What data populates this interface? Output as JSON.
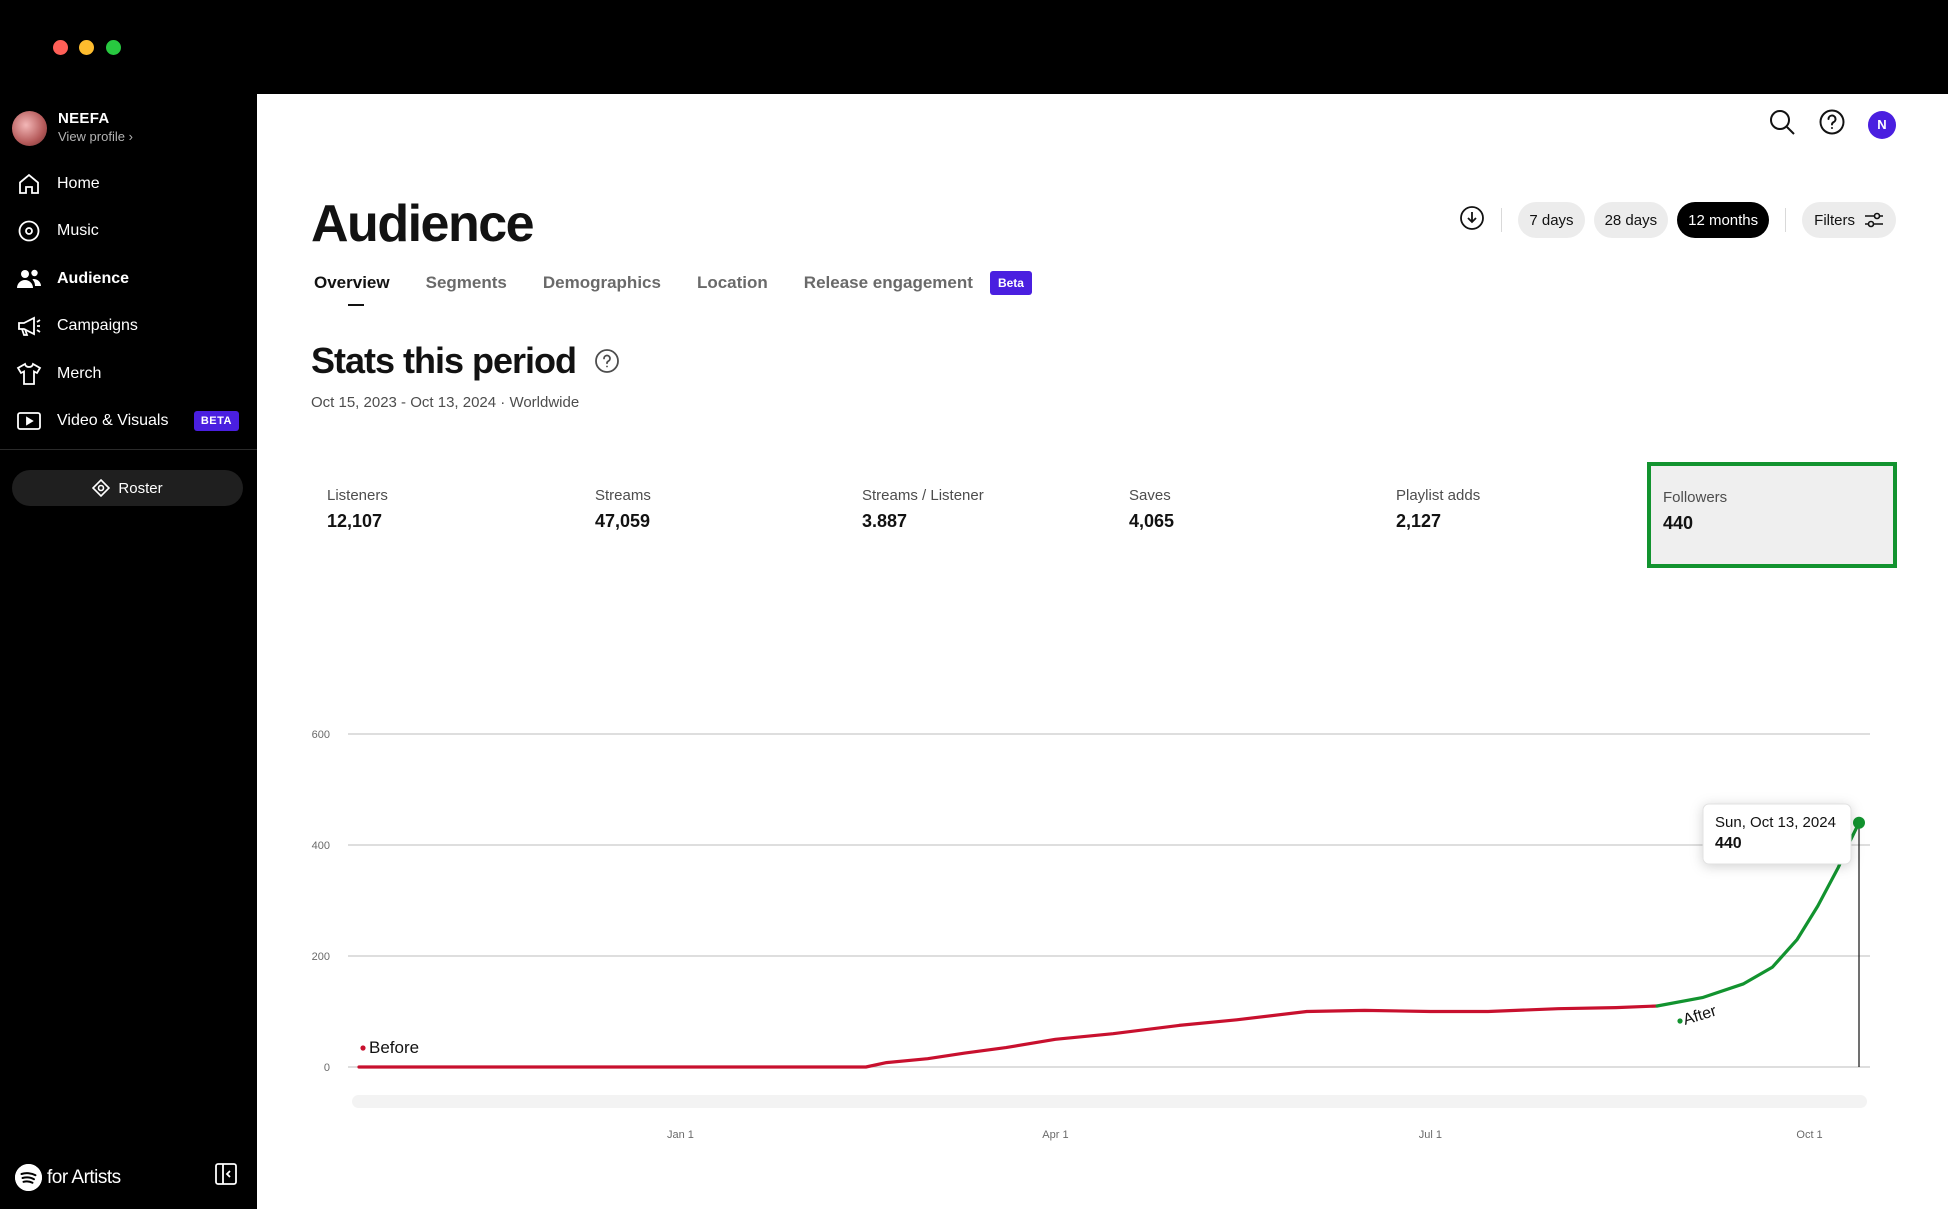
{
  "sidebar": {
    "profile": {
      "name": "NEEFA",
      "link": "View profile ›"
    },
    "items": [
      {
        "label": "Home",
        "icon": "home-icon"
      },
      {
        "label": "Music",
        "icon": "disc-icon"
      },
      {
        "label": "Audience",
        "icon": "people-icon",
        "active": true
      },
      {
        "label": "Campaigns",
        "icon": "megaphone-icon"
      },
      {
        "label": "Merch",
        "icon": "shirt-icon"
      },
      {
        "label": "Video & Visuals",
        "icon": "video-icon",
        "badge": "BETA"
      }
    ],
    "roster_label": "Roster",
    "brand_text": "for Artists"
  },
  "header": {
    "avatar_initial": "N"
  },
  "page": {
    "title": "Audience",
    "time_ranges": [
      "7 days",
      "28 days",
      "12 months"
    ],
    "active_range": "12 months",
    "filters_label": "Filters",
    "tabs": [
      "Overview",
      "Segments",
      "Demographics",
      "Location",
      "Release engagement"
    ],
    "tab_badge": "Beta",
    "section_title": "Stats this period",
    "period_text": "Oct 15, 2023 - Oct 13, 2024 · Worldwide"
  },
  "stats": [
    {
      "label": "Listeners",
      "value": "12,107"
    },
    {
      "label": "Streams",
      "value": "47,059"
    },
    {
      "label": "Streams / Listener",
      "value": "3.887"
    },
    {
      "label": "Saves",
      "value": "4,065"
    },
    {
      "label": "Playlist adds",
      "value": "2,127"
    },
    {
      "label": "Followers",
      "value": "440",
      "selected": true
    }
  ],
  "colors": {
    "accent": "#4a1fe0",
    "before_line": "#c8102e",
    "after_line": "#12932f",
    "selected_border": "#12932f"
  },
  "chart_data": {
    "type": "line",
    "ylim": [
      0,
      600
    ],
    "y_ticks": [
      "0",
      "200",
      "400",
      "600"
    ],
    "x_ticks": [
      "Jan 1",
      "Apr 1",
      "Jul 1",
      "Oct 1"
    ],
    "annotations": {
      "before": "Before",
      "after": "After"
    },
    "tooltip": {
      "date": "Sun, Oct 13, 2024",
      "value": "440"
    },
    "series": [
      {
        "segment": "before",
        "points": [
          [
            "2023-10-15",
            0
          ],
          [
            "2024-02-15",
            0
          ],
          [
            "2024-02-20",
            8
          ],
          [
            "2024-03-01",
            15
          ],
          [
            "2024-03-10",
            25
          ],
          [
            "2024-03-20",
            35
          ],
          [
            "2024-04-01",
            50
          ],
          [
            "2024-04-15",
            60
          ],
          [
            "2024-05-01",
            75
          ],
          [
            "2024-05-15",
            85
          ],
          [
            "2024-06-01",
            100
          ],
          [
            "2024-06-15",
            102
          ],
          [
            "2024-07-01",
            100
          ],
          [
            "2024-07-15",
            100
          ],
          [
            "2024-08-01",
            105
          ],
          [
            "2024-08-15",
            107
          ],
          [
            "2024-08-25",
            110
          ]
        ]
      },
      {
        "segment": "after",
        "points": [
          [
            "2024-08-25",
            110
          ],
          [
            "2024-09-05",
            125
          ],
          [
            "2024-09-15",
            150
          ],
          [
            "2024-09-22",
            180
          ],
          [
            "2024-09-28",
            230
          ],
          [
            "2024-10-03",
            290
          ],
          [
            "2024-10-08",
            360
          ],
          [
            "2024-10-11",
            410
          ],
          [
            "2024-10-13",
            440
          ]
        ]
      }
    ]
  }
}
